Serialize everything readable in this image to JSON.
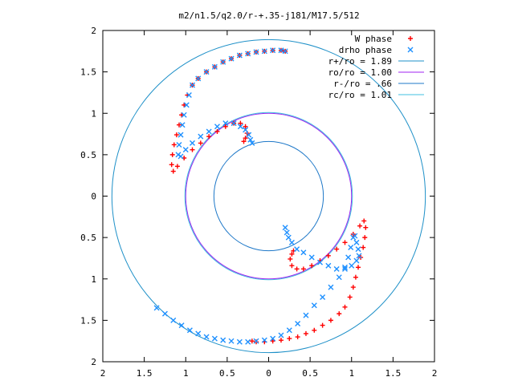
{
  "chart_data": {
    "type": "scatter",
    "title": "m2/n1.5/q2.0/r-+.35-j181/M17.5/512",
    "xlabel": "",
    "ylabel": "",
    "xlim": [
      -2,
      2
    ],
    "ylim": [
      -2,
      2
    ],
    "x_ticks": [
      "2",
      "1.5",
      "1",
      "0.5",
      "0",
      "0.5",
      "1",
      "1.5",
      "2"
    ],
    "y_ticks": [
      "2",
      "1.5",
      "1",
      "0.5",
      "0",
      "0.5",
      "1",
      "1.5",
      "2"
    ],
    "grid": false,
    "legend_position": "top-right",
    "series": [
      {
        "name": "W phase",
        "marker": "+",
        "color": "#ff0000",
        "x": [
          0.2,
          0.15,
          0.05,
          -0.05,
          -0.15,
          -0.25,
          -0.35,
          -0.45,
          -0.55,
          -0.65,
          -0.75,
          -0.85,
          -0.92,
          -0.98,
          -1.02,
          -1.05,
          -1.08,
          -1.11,
          -1.14,
          -1.16,
          -1.17,
          -1.15,
          -1.1,
          -1.02,
          -0.92,
          -0.82,
          -0.72,
          -0.62,
          -0.52,
          -0.42,
          -0.34,
          -0.28,
          -0.26,
          -0.28,
          -0.3,
          -0.2,
          -0.15,
          -0.05,
          0.05,
          0.15,
          0.25,
          0.35,
          0.45,
          0.55,
          0.65,
          0.75,
          0.85,
          0.92,
          0.98,
          1.02,
          1.05,
          1.08,
          1.11,
          1.14,
          1.16,
          1.17,
          1.15,
          1.1,
          1.02,
          0.92,
          0.82,
          0.72,
          0.62,
          0.52,
          0.42,
          0.34,
          0.28,
          0.26,
          0.28,
          0.3
        ],
        "y": [
          1.75,
          1.76,
          1.76,
          1.75,
          1.74,
          1.72,
          1.7,
          1.66,
          1.62,
          1.56,
          1.5,
          1.42,
          1.34,
          1.22,
          1.1,
          0.98,
          0.86,
          0.74,
          0.62,
          0.5,
          0.38,
          0.3,
          0.36,
          0.46,
          0.56,
          0.64,
          0.72,
          0.78,
          0.84,
          0.88,
          0.88,
          0.84,
          0.76,
          0.7,
          0.66,
          -1.75,
          -1.76,
          -1.76,
          -1.75,
          -1.74,
          -1.72,
          -1.7,
          -1.66,
          -1.62,
          -1.56,
          -1.5,
          -1.42,
          -1.34,
          -1.22,
          -1.1,
          -0.98,
          -0.86,
          -0.74,
          -0.62,
          -0.5,
          -0.38,
          -0.3,
          -0.36,
          -0.46,
          -0.56,
          -0.64,
          -0.72,
          -0.78,
          -0.84,
          -0.88,
          -0.88,
          -0.84,
          -0.76,
          -0.7,
          -0.66
        ]
      },
      {
        "name": "drho phase",
        "marker": "x",
        "color": "#1e90ff",
        "x": [
          0.2,
          0.15,
          0.05,
          -0.05,
          -0.15,
          -0.25,
          -0.35,
          -0.45,
          -0.55,
          -0.65,
          -0.75,
          -0.85,
          -0.92,
          -0.96,
          -0.99,
          -1.02,
          -1.04,
          -1.06,
          -1.08,
          -1.09,
          -1.06,
          -1.0,
          -0.92,
          -0.82,
          -0.72,
          -0.62,
          -0.52,
          -0.42,
          -0.34,
          -0.28,
          -0.24,
          -0.22,
          -0.2,
          -1.35,
          -1.25,
          -1.15,
          -1.05,
          -0.95,
          -0.85,
          -0.75,
          -0.65,
          -0.55,
          -0.45,
          -0.35,
          -0.25,
          -0.15,
          -0.05,
          0.05,
          0.15,
          0.25,
          0.35,
          0.45,
          0.55,
          0.65,
          0.75,
          0.85,
          0.92,
          0.96,
          0.99,
          1.02,
          1.04,
          1.06,
          1.08,
          1.09,
          1.06,
          1.0,
          0.92,
          0.82,
          0.72,
          0.62,
          0.52,
          0.42,
          0.34,
          0.28,
          0.24,
          0.22,
          0.2
        ],
        "y": [
          1.75,
          1.76,
          1.76,
          1.75,
          1.74,
          1.72,
          1.7,
          1.66,
          1.62,
          1.56,
          1.5,
          1.42,
          1.34,
          1.22,
          1.1,
          0.98,
          0.86,
          0.74,
          0.62,
          0.5,
          0.48,
          0.56,
          0.64,
          0.72,
          0.78,
          0.84,
          0.88,
          0.88,
          0.84,
          0.8,
          0.74,
          0.68,
          0.64,
          -1.35,
          -1.42,
          -1.5,
          -1.56,
          -1.62,
          -1.66,
          -1.7,
          -1.72,
          -1.74,
          -1.75,
          -1.76,
          -1.76,
          -1.75,
          -1.74,
          -1.72,
          -1.68,
          -1.62,
          -1.54,
          -1.44,
          -1.32,
          -1.22,
          -1.1,
          -0.98,
          -0.86,
          -0.74,
          -0.62,
          -0.5,
          -0.48,
          -0.56,
          -0.64,
          -0.72,
          -0.78,
          -0.84,
          -0.88,
          -0.88,
          -0.84,
          -0.8,
          -0.74,
          -0.68,
          -0.64,
          -0.56,
          -0.5,
          -0.44,
          -0.38
        ]
      },
      {
        "name": "r+/ro = 1.89",
        "type": "circle",
        "radius": 1.89,
        "color": "#1e90c8"
      },
      {
        "name": "ro/ro = 1.00",
        "type": "circle",
        "radius": 1.0,
        "color": "#a020f0"
      },
      {
        "name": "r-/ro = .66",
        "type": "circle",
        "radius": 0.66,
        "color": "#1e78c8"
      },
      {
        "name": "rc/ro = 1.01",
        "type": "circle",
        "radius": 1.01,
        "color": "#40c0e0"
      }
    ]
  }
}
